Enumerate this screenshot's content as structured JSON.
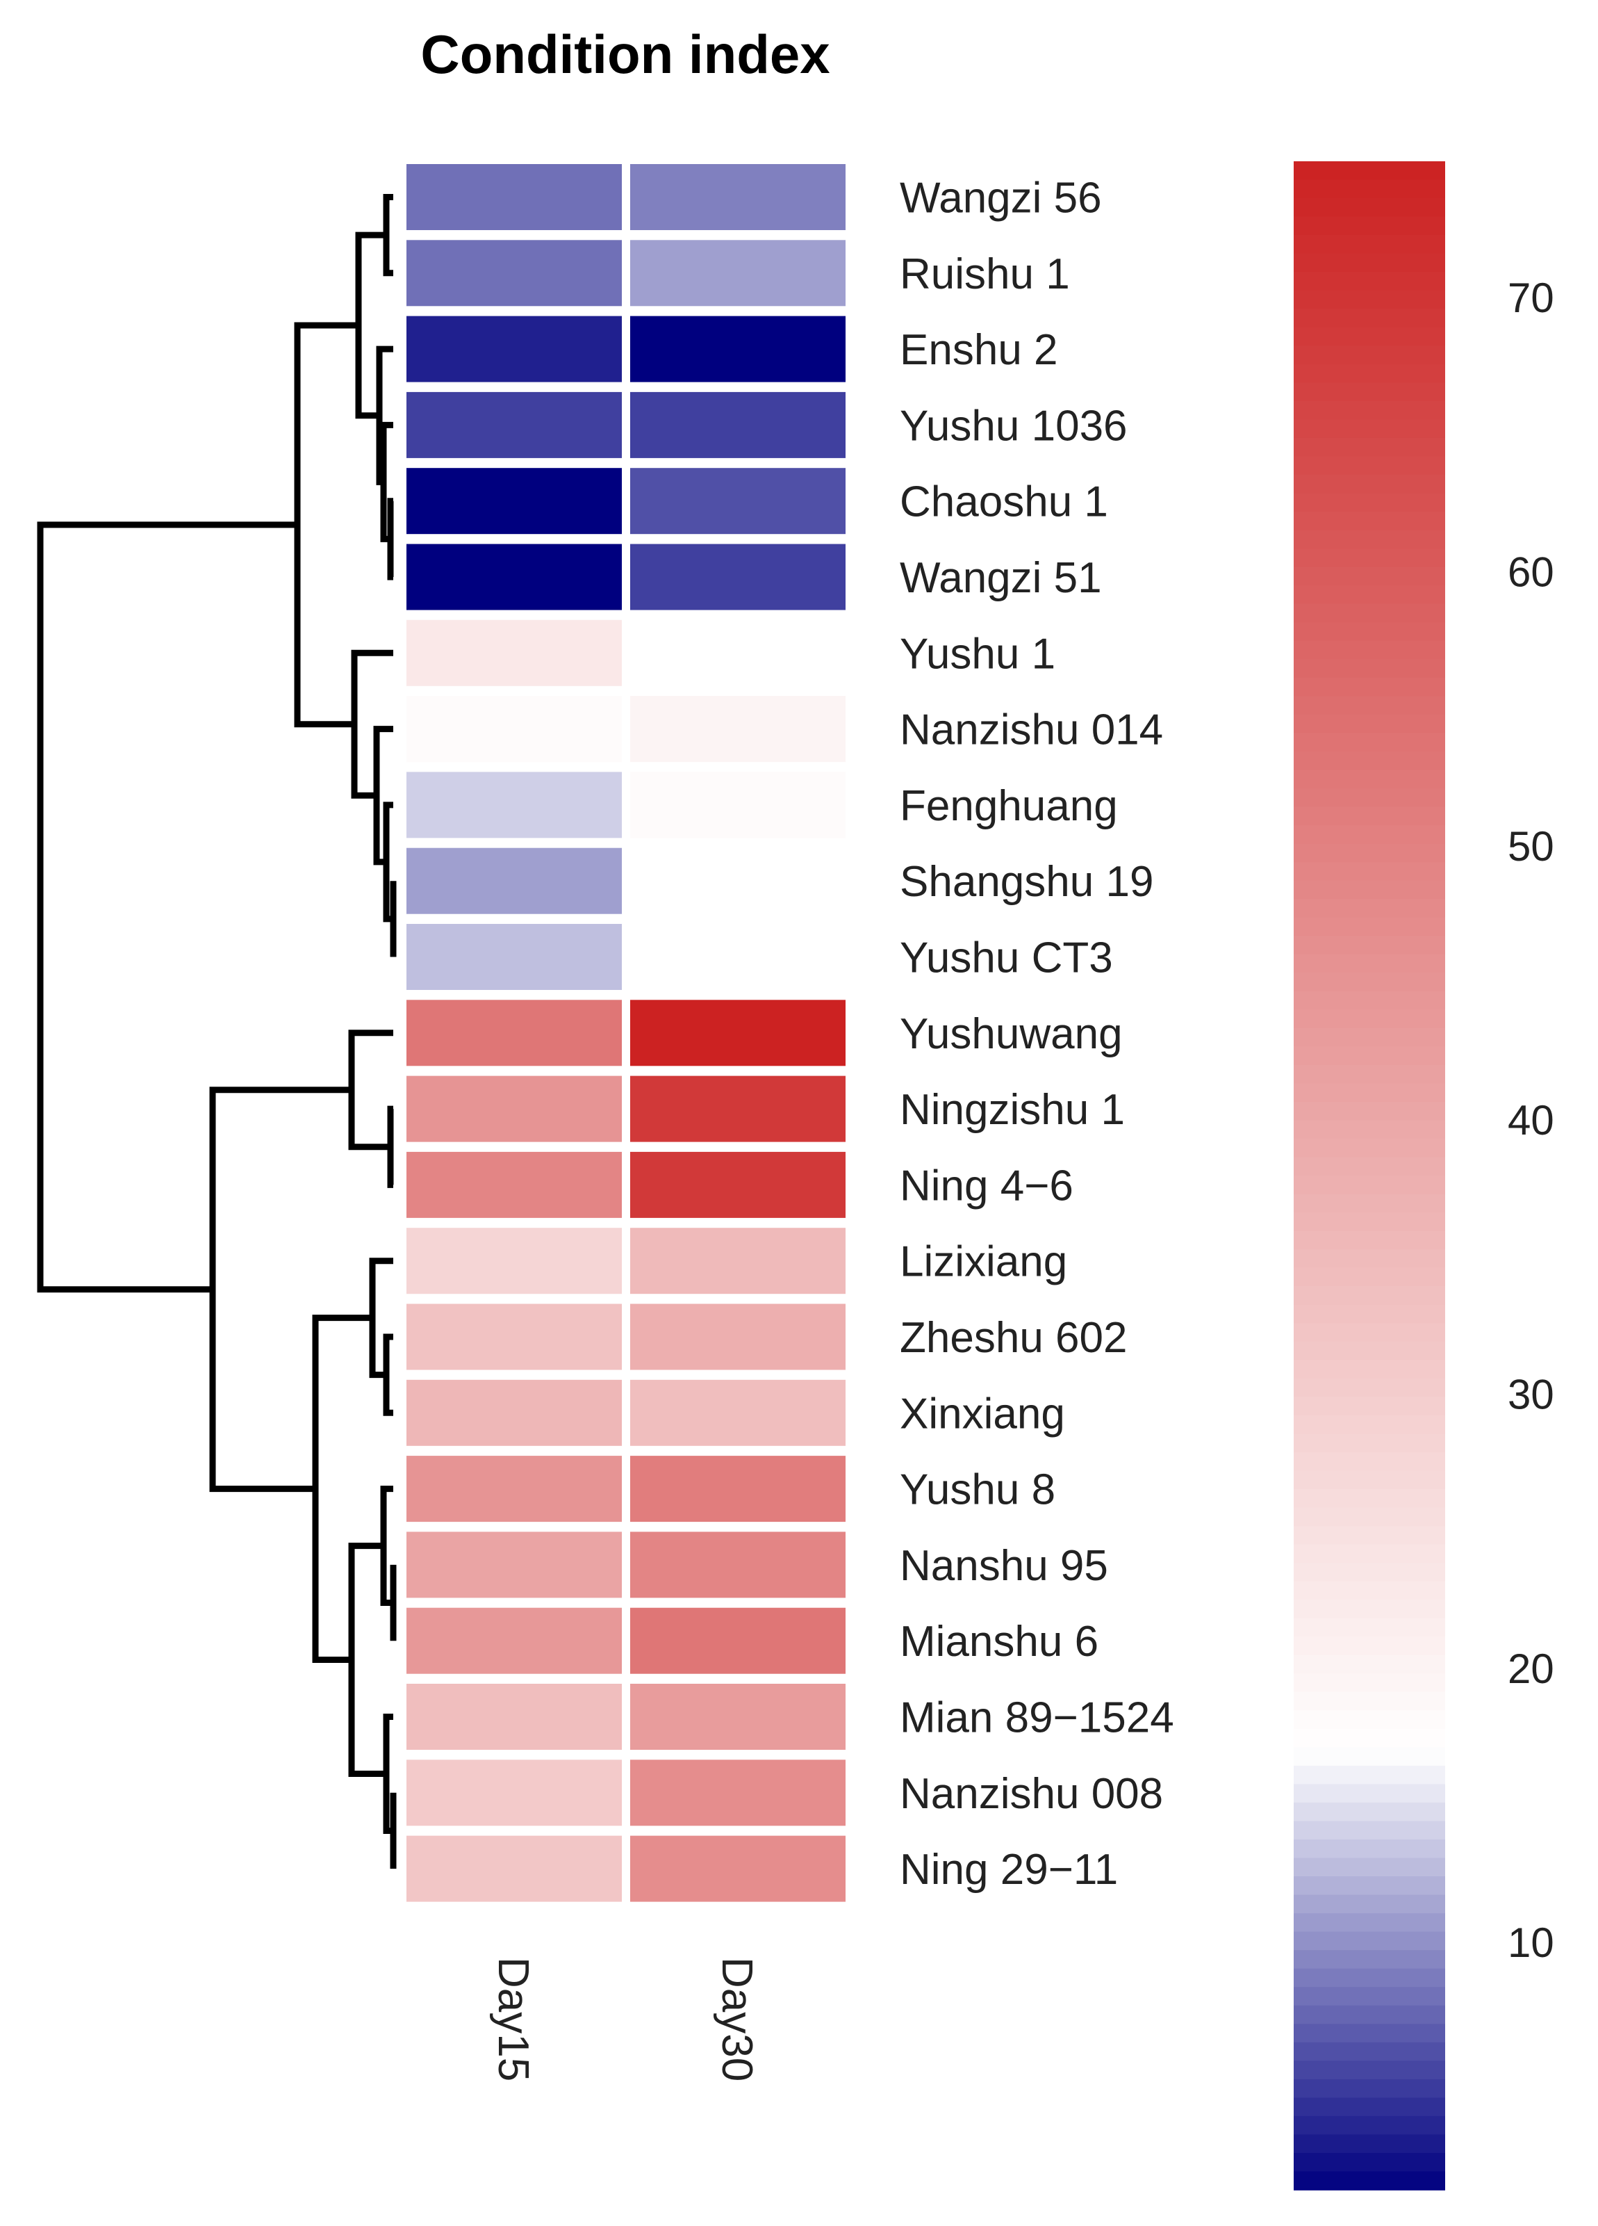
{
  "chart_data": {
    "type": "heatmap",
    "title": "Condition index",
    "columns": [
      "Day15",
      "Day30"
    ],
    "rows": [
      "Wangzi 56",
      "Ruishu 1",
      "Enshu 2",
      "Yushu 1036",
      "Chaoshu 1",
      "Wangzi 51",
      "Yushu 1",
      "Nanzishu 014",
      "Fenghuang",
      "Shangshu 19",
      "Yushu CT3",
      "Yushuwang",
      "Ningzishu 1",
      "Ning 4−6",
      "Lizixiang",
      "Zheshu 602",
      "Xinxiang",
      "Yushu 8",
      "Nanshu 95",
      "Mianshu 6",
      "Mian 89−1524",
      "Nanzishu 008",
      "Ning 29−11"
    ],
    "values": [
      [
        8,
        9
      ],
      [
        8,
        11
      ],
      [
        3,
        1
      ],
      [
        5,
        5
      ],
      [
        1,
        6
      ],
      [
        1,
        5
      ],
      [
        23,
        17
      ],
      [
        18,
        20
      ],
      [
        14,
        18
      ],
      [
        11,
        17
      ],
      [
        13,
        17
      ],
      [
        53,
        75
      ],
      [
        45,
        69
      ],
      [
        49,
        69
      ],
      [
        28,
        35
      ],
      [
        33,
        38
      ],
      [
        36,
        34
      ],
      [
        45,
        51
      ],
      [
        41,
        49
      ],
      [
        44,
        53
      ],
      [
        34,
        43
      ],
      [
        31,
        47
      ],
      [
        32,
        47
      ]
    ],
    "colorbar": {
      "min": 1,
      "max": 75,
      "midpoint": 17,
      "low_color": "#00007f",
      "mid_color": "#ffffff",
      "high_color": "#cc2222",
      "ticks": [
        "10",
        "20",
        "30",
        "40",
        "50",
        "60",
        "70"
      ]
    },
    "row_dendrogram": true
  }
}
